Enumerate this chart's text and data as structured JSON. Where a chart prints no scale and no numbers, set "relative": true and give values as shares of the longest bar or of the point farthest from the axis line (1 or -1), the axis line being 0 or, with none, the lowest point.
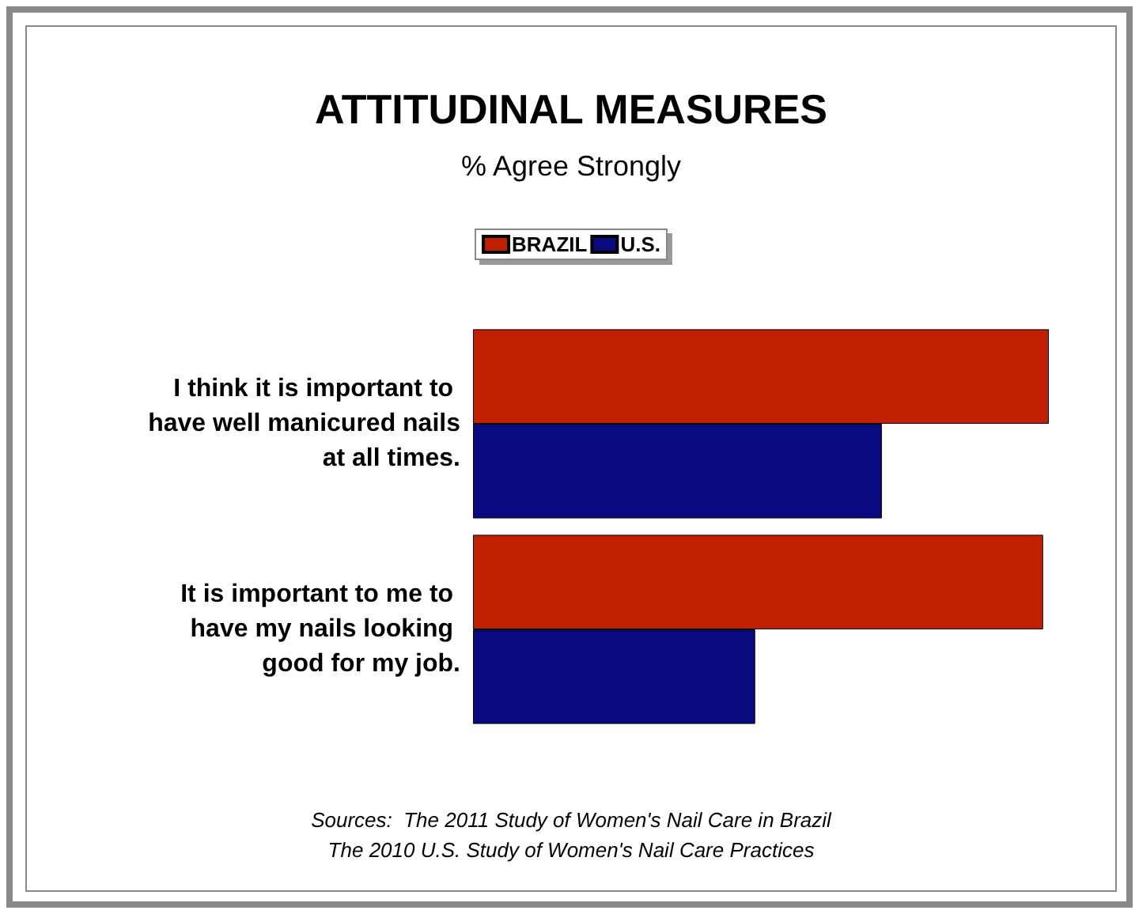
{
  "chart_data": {
    "type": "bar",
    "orientation": "horizontal",
    "relative": true,
    "title": "ATTITUDINAL MEASURES",
    "subtitle": "% Agree Strongly",
    "categories": [
      "I think it is important to have well manicured nails at all times.",
      "It is important to me to have my nails looking good for my job."
    ],
    "series": [
      {
        "name": "BRAZIL",
        "color": "#c02000",
        "values": [
          1,
          0.99
        ]
      },
      {
        "name": "U.S.",
        "color": "#0a0a80",
        "values": [
          0.71,
          0.49
        ]
      }
    ],
    "legend": "top",
    "annotations": [
      "Sources:  The 2011 Study of Women's Nail Care in Brazil",
      "The 2010 U.S. Study of Women's Nail Care Practices"
    ]
  }
}
